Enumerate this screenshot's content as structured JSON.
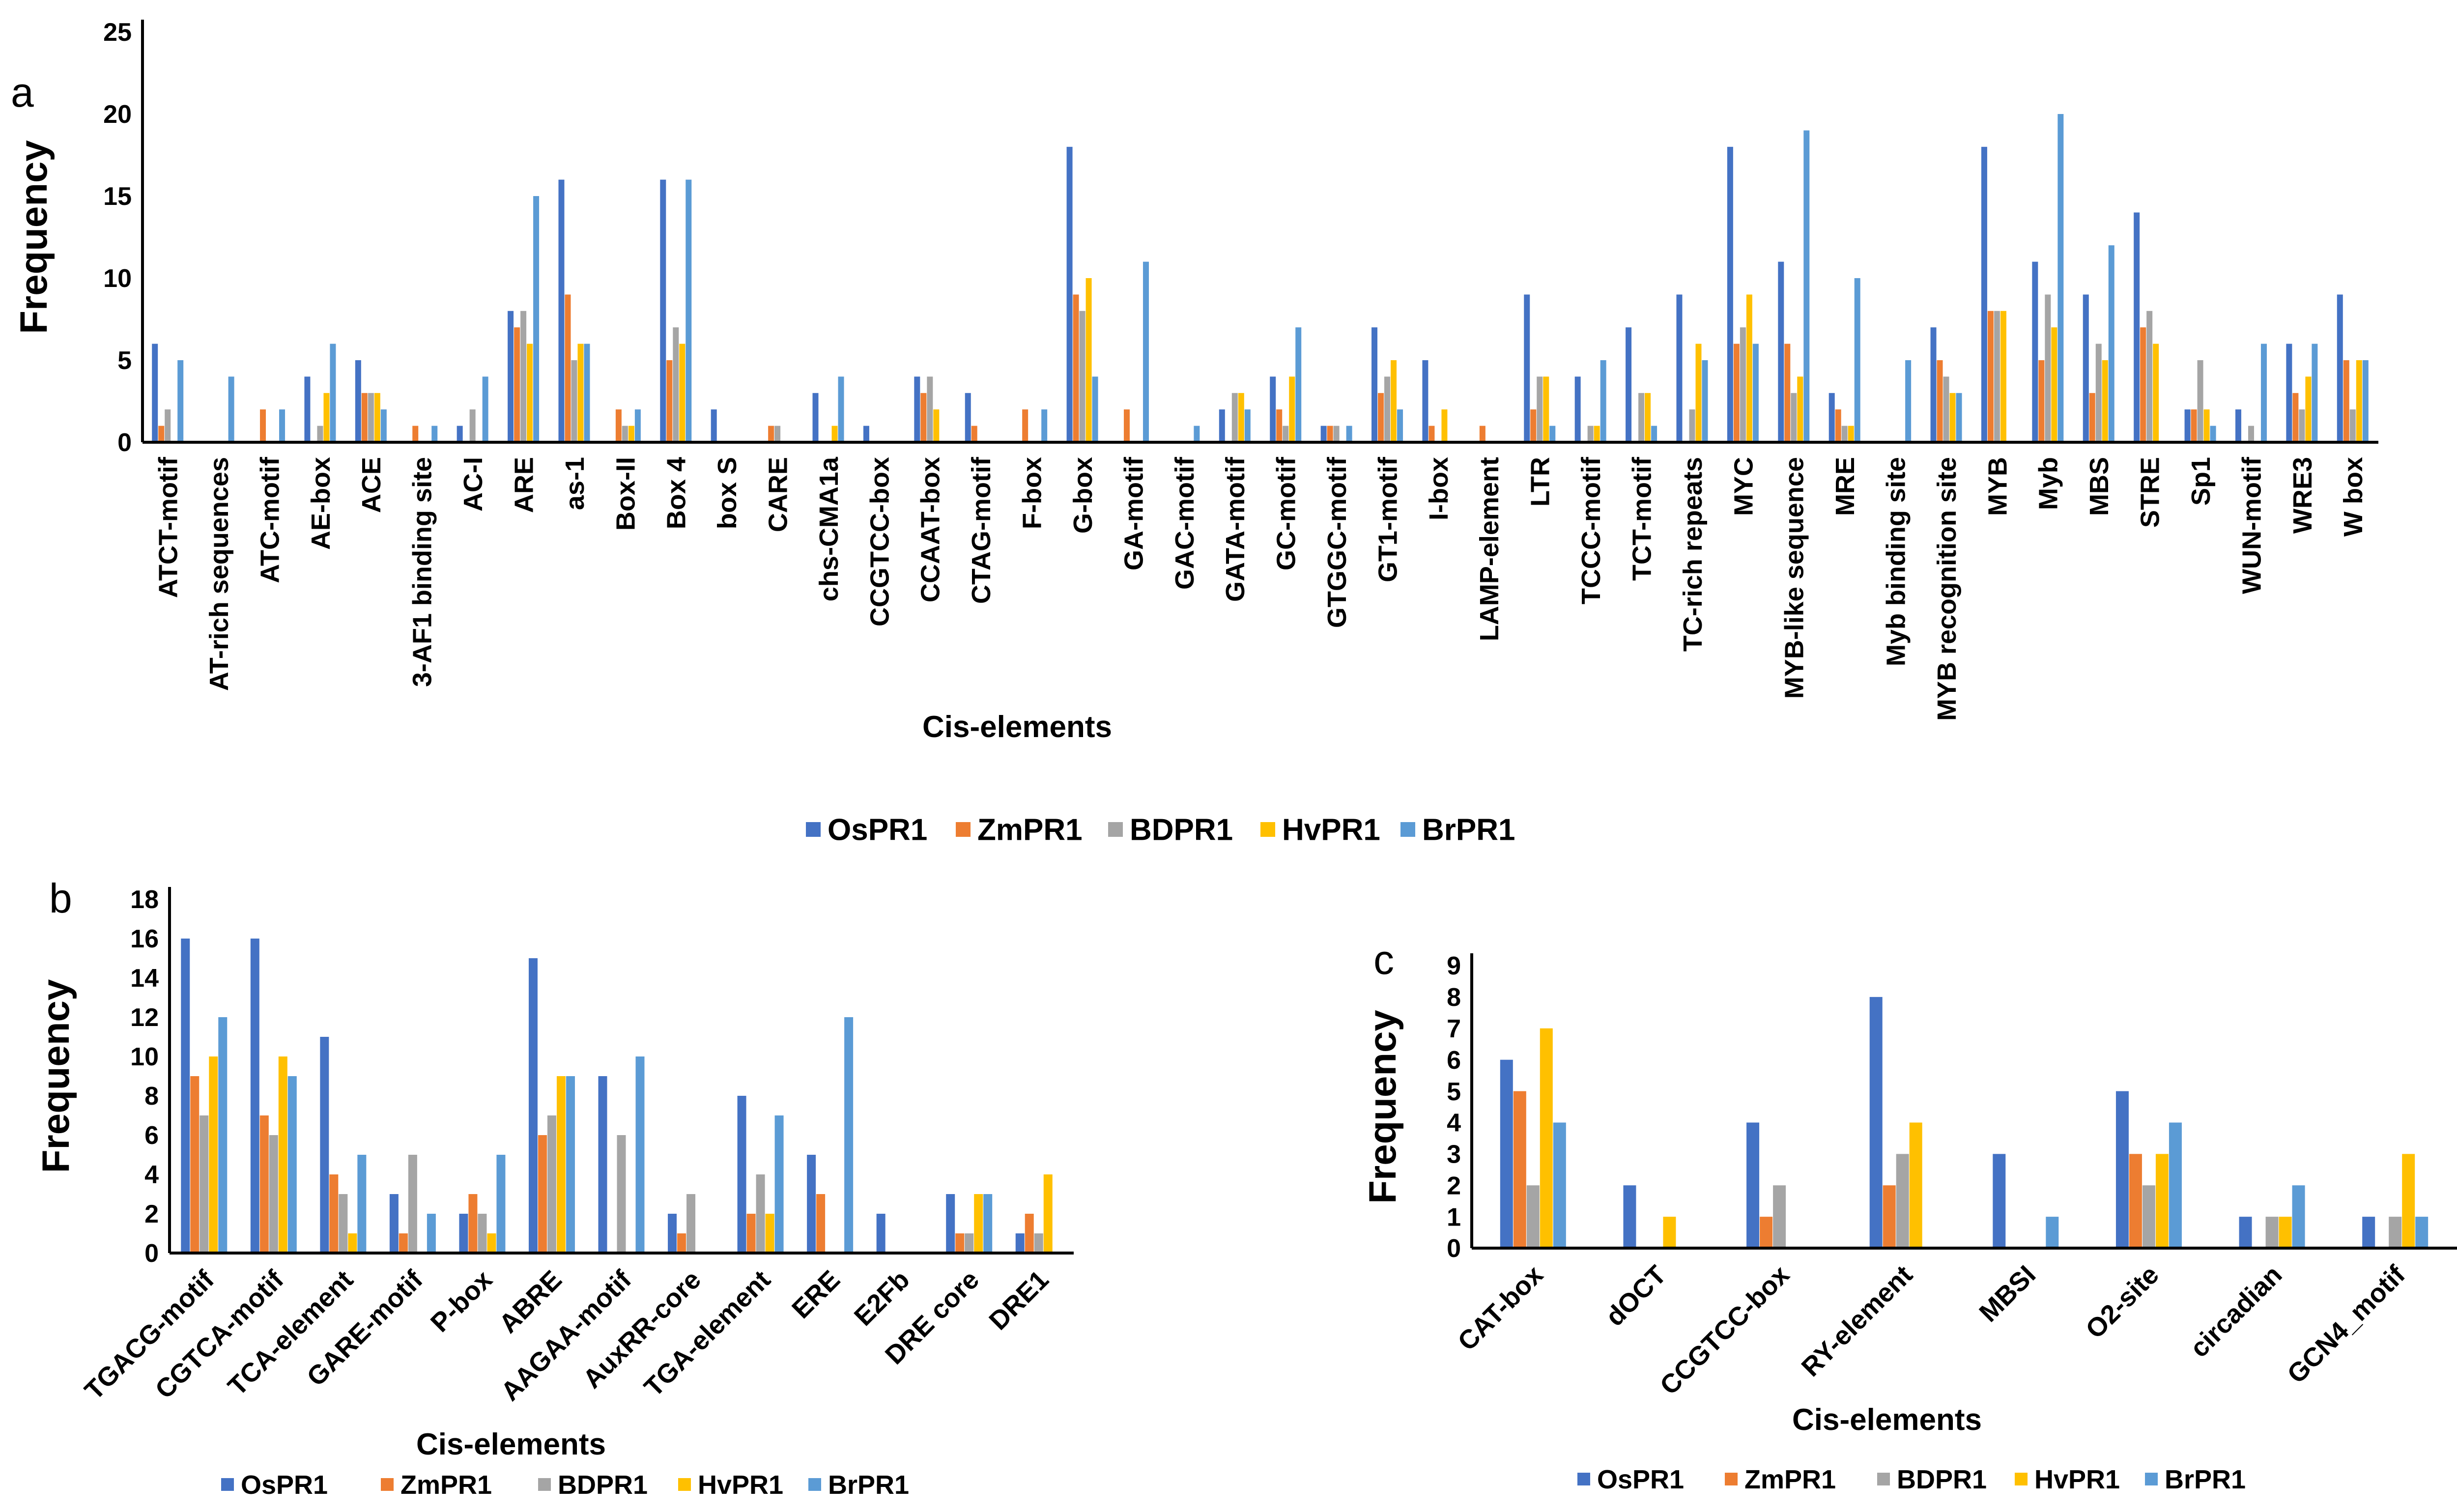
{
  "series_names": [
    "OsPR1",
    "ZmPR1",
    "BDPR1",
    "HvPR1",
    "BrPR1"
  ],
  "colors": [
    "#4472C4",
    "#ED7D31",
    "#A5A5A5",
    "#FFC000",
    "#5B9BD5"
  ],
  "panel_letters": {
    "a": "a",
    "b": "b",
    "c": "c"
  },
  "chart_data": [
    {
      "id": "a",
      "type": "bar",
      "xlabel": "Cis-elements",
      "ylabel": "Frequency",
      "ylim": [
        0,
        25
      ],
      "yticks": [
        0,
        5,
        10,
        15,
        20,
        25
      ],
      "categories": [
        "ATCT-motif",
        "AT-rich sequences",
        "ATC-motif",
        "AE-box",
        "ACE",
        "3-AF1 binding site",
        "AC-I",
        "ARE",
        "as-1",
        "Box-II",
        "Box 4",
        "box S",
        "CARE",
        "chs-CMA1a",
        "CCGTCC-box",
        "CCAAT-box",
        "CTAG-motif",
        "F-box",
        "G-box",
        "GA-motif",
        "GAC-motif",
        "GATA-motif",
        "GC-motif",
        "GTGGC-motif",
        "GT1-motif",
        "I-box",
        "LAMP-element",
        "LTR",
        "TCCC-motif",
        "TCT-motif",
        "TC-rich repeats",
        "MYC",
        "MYB-like sequence",
        "MRE",
        "Myb binding site",
        "MYB recognition site",
        "MYB",
        "Myb",
        "MBS",
        "STRE",
        "Sp1",
        "WUN-motif",
        "WRE3",
        "W box"
      ],
      "series": [
        {
          "name": "OsPR1",
          "values": [
            6,
            0,
            0,
            4,
            5,
            0,
            1,
            8,
            16,
            0,
            16,
            2,
            0,
            3,
            1,
            4,
            3,
            0,
            18,
            0,
            0,
            2,
            4,
            1,
            7,
            5,
            0,
            9,
            4,
            7,
            9,
            18,
            11,
            3,
            0,
            7,
            18,
            11,
            9,
            14,
            2,
            2,
            6,
            9
          ]
        },
        {
          "name": "ZmPR1",
          "values": [
            1,
            0,
            2,
            0,
            3,
            1,
            0,
            7,
            9,
            2,
            5,
            0,
            1,
            0,
            0,
            3,
            1,
            2,
            9,
            2,
            0,
            0,
            2,
            1,
            3,
            1,
            1,
            2,
            0,
            0,
            0,
            6,
            6,
            2,
            0,
            5,
            8,
            5,
            3,
            7,
            2,
            0,
            3,
            5
          ]
        },
        {
          "name": "BDPR1",
          "values": [
            2,
            0,
            0,
            1,
            3,
            0,
            2,
            8,
            5,
            1,
            7,
            0,
            1,
            0,
            0,
            4,
            0,
            0,
            8,
            0,
            0,
            3,
            1,
            1,
            4,
            0,
            0,
            4,
            1,
            3,
            2,
            7,
            3,
            1,
            0,
            4,
            8,
            9,
            6,
            8,
            5,
            1,
            2,
            2
          ]
        },
        {
          "name": "HvPR1",
          "values": [
            0,
            0,
            0,
            3,
            3,
            0,
            0,
            6,
            6,
            1,
            6,
            0,
            0,
            1,
            0,
            2,
            0,
            0,
            10,
            0,
            0,
            3,
            4,
            0,
            5,
            2,
            0,
            4,
            1,
            3,
            6,
            9,
            4,
            1,
            0,
            3,
            8,
            7,
            5,
            6,
            2,
            0,
            4,
            5
          ]
        },
        {
          "name": "BrPR1",
          "values": [
            5,
            4,
            2,
            6,
            2,
            1,
            4,
            15,
            6,
            2,
            16,
            0,
            0,
            4,
            0,
            0,
            0,
            2,
            4,
            11,
            1,
            2,
            7,
            1,
            2,
            0,
            0,
            1,
            5,
            1,
            5,
            6,
            19,
            10,
            5,
            3,
            0,
            20,
            12,
            0,
            1,
            6,
            6,
            5
          ]
        }
      ]
    },
    {
      "id": "b",
      "type": "bar",
      "xlabel": "Cis-elements",
      "ylabel": "Frequency",
      "ylim": [
        0,
        18
      ],
      "yticks": [
        0,
        2,
        4,
        6,
        8,
        10,
        12,
        14,
        16,
        18
      ],
      "categories": [
        "TGACG-motif",
        "CGTCA-motif",
        "TCA-element",
        "GARE-motif",
        "P-box",
        "ABRE",
        "AAGAA-motif",
        "AuxRR-core",
        "TGA-element",
        "ERE",
        "E2Fb",
        "DRE core",
        "DRE1"
      ],
      "series": [
        {
          "name": "OsPR1",
          "values": [
            16,
            16,
            11,
            3,
            2,
            15,
            9,
            2,
            8,
            5,
            2,
            3,
            1
          ]
        },
        {
          "name": "ZmPR1",
          "values": [
            9,
            7,
            4,
            1,
            3,
            6,
            0,
            1,
            2,
            3,
            0,
            1,
            2
          ]
        },
        {
          "name": "BDPR1",
          "values": [
            7,
            6,
            3,
            5,
            2,
            7,
            6,
            3,
            4,
            0,
            0,
            1,
            1
          ]
        },
        {
          "name": "HvPR1",
          "values": [
            10,
            10,
            1,
            0,
            1,
            9,
            0,
            0,
            2,
            0,
            0,
            3,
            4
          ]
        },
        {
          "name": "BrPR1",
          "values": [
            12,
            9,
            5,
            2,
            5,
            9,
            10,
            0,
            7,
            12,
            0,
            3,
            0
          ]
        }
      ]
    },
    {
      "id": "c",
      "type": "bar",
      "xlabel": "Cis-elements",
      "ylabel": "Frequency",
      "ylim": [
        0,
        9
      ],
      "yticks": [
        0,
        1,
        2,
        3,
        4,
        5,
        6,
        7,
        8,
        9
      ],
      "categories": [
        "CAT-box",
        "dOCT",
        "CCGTCC-box",
        "RY-element",
        "MBSI",
        "O2-site",
        "circadian",
        "GCN4_motif"
      ],
      "series": [
        {
          "name": "OsPR1",
          "values": [
            6,
            2,
            4,
            8,
            3,
            5,
            1,
            1
          ]
        },
        {
          "name": "ZmPR1",
          "values": [
            5,
            0,
            1,
            2,
            0,
            3,
            0,
            0
          ]
        },
        {
          "name": "BDPR1",
          "values": [
            2,
            0,
            2,
            3,
            0,
            2,
            1,
            1
          ]
        },
        {
          "name": "HvPR1",
          "values": [
            7,
            1,
            0,
            4,
            0,
            3,
            1,
            3
          ]
        },
        {
          "name": "BrPR1",
          "values": [
            4,
            0,
            0,
            0,
            1,
            4,
            2,
            1
          ]
        }
      ]
    }
  ]
}
